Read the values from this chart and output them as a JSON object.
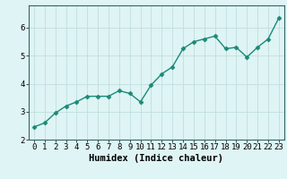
{
  "x": [
    0,
    1,
    2,
    3,
    4,
    5,
    6,
    7,
    8,
    9,
    10,
    11,
    12,
    13,
    14,
    15,
    16,
    17,
    18,
    19,
    20,
    21,
    22,
    23
  ],
  "y": [
    2.45,
    2.6,
    2.95,
    3.2,
    3.35,
    3.55,
    3.55,
    3.55,
    3.75,
    3.65,
    3.35,
    3.95,
    4.35,
    4.6,
    5.25,
    5.5,
    5.6,
    5.7,
    5.25,
    5.3,
    4.95,
    5.3,
    5.6,
    6.35
  ],
  "line_color": "#1a8a78",
  "marker": "D",
  "marker_size": 2.5,
  "linewidth": 1.0,
  "xlabel": "Humidex (Indice chaleur)",
  "xlabel_fontsize": 7.5,
  "ylim": [
    2.0,
    6.8
  ],
  "xlim": [
    -0.5,
    23.5
  ],
  "yticks": [
    2,
    3,
    4,
    5,
    6
  ],
  "xticks": [
    0,
    1,
    2,
    3,
    4,
    5,
    6,
    7,
    8,
    9,
    10,
    11,
    12,
    13,
    14,
    15,
    16,
    17,
    18,
    19,
    20,
    21,
    22,
    23
  ],
  "bg_color": "#dff4f4",
  "grid_color": "#c0dede",
  "tick_fontsize": 6.5
}
